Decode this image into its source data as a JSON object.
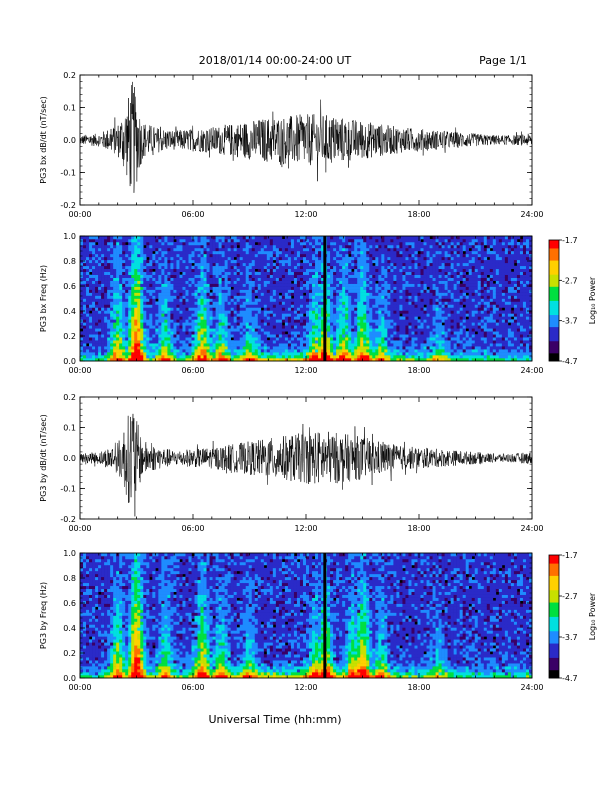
{
  "header": {
    "title": "2018/01/14  00:00-24:00 UT",
    "page": "Page 1/1"
  },
  "x_axis": {
    "title": "Universal Time (hh:mm)",
    "tick_labels": [
      "00:00",
      "06:00",
      "12:00",
      "18:00",
      "24:00"
    ]
  },
  "colorbar": {
    "label": "Log₁₀ Power",
    "tick_labels": [
      "-1.7",
      "-2.7",
      "-3.7",
      "-4.7"
    ],
    "range": [
      -4.7,
      -1.7
    ],
    "colors": [
      "#000000",
      "#3a0066",
      "#2a2ac8",
      "#1e8cff",
      "#00e0e0",
      "#00e040",
      "#c8e000",
      "#ffd000",
      "#ff7000",
      "#ff0000"
    ]
  },
  "chart_data": [
    {
      "type": "line",
      "ylabel": "PG3 bx dB/dt (nT/sec)",
      "xlim": [
        0,
        24
      ],
      "ylim": [
        -0.2,
        0.2
      ],
      "y_tick_labels": [
        "-0.2",
        "-0.1",
        "0.0",
        "0.1",
        "0.2"
      ],
      "line_color": "#000000",
      "series": [
        {
          "x": [
            0,
            1,
            2,
            2.5,
            2.8,
            3.0,
            3.3,
            4,
            5,
            6,
            7,
            8,
            9,
            10,
            11,
            12,
            13,
            14,
            15,
            16,
            17,
            18,
            19,
            20,
            21,
            22,
            23,
            24
          ],
          "envelope": [
            0.015,
            0.02,
            0.05,
            0.12,
            0.19,
            0.14,
            0.06,
            0.04,
            0.03,
            0.035,
            0.04,
            0.05,
            0.06,
            0.07,
            0.075,
            0.08,
            0.08,
            0.07,
            0.06,
            0.05,
            0.04,
            0.035,
            0.03,
            0.025,
            0.02,
            0.015,
            0.015,
            0.02
          ]
        }
      ]
    },
    {
      "type": "heatmap",
      "ylabel": "PG3 bx Freq (Hz)",
      "xlim": [
        0,
        24
      ],
      "ylim": [
        0,
        1
      ],
      "y_tick_labels": [
        "0.0",
        "0.2",
        "0.4",
        "0.6",
        "0.8",
        "1.0"
      ],
      "value_label": "Log₁₀ Power",
      "color_range": [
        -4.7,
        -1.7
      ],
      "active_x": [
        2.0,
        3.0,
        4.5,
        6.5,
        7.5,
        9.0,
        12.5,
        13.0,
        14.0,
        15.0,
        16.0,
        19.0
      ],
      "active_strength": [
        0.6,
        1.0,
        0.5,
        0.65,
        0.5,
        0.4,
        0.55,
        0.7,
        0.6,
        0.65,
        0.4,
        0.3
      ],
      "gap_at_x": 13.0
    },
    {
      "type": "line",
      "ylabel": "PG3 by dB/dt (nT/sec)",
      "xlim": [
        0,
        24
      ],
      "ylim": [
        -0.2,
        0.2
      ],
      "y_tick_labels": [
        "-0.2",
        "-0.1",
        "0.0",
        "0.1",
        "0.2"
      ],
      "line_color": "#000000",
      "series": [
        {
          "x": [
            0,
            1,
            2,
            2.5,
            2.8,
            3.0,
            3.3,
            4,
            5,
            6,
            7,
            8,
            9,
            10,
            11,
            12,
            13,
            14,
            15,
            16,
            17,
            18,
            19,
            20,
            21,
            22,
            23,
            24
          ],
          "envelope": [
            0.015,
            0.02,
            0.05,
            0.13,
            0.2,
            0.13,
            0.06,
            0.04,
            0.025,
            0.03,
            0.035,
            0.045,
            0.055,
            0.065,
            0.075,
            0.085,
            0.09,
            0.08,
            0.07,
            0.055,
            0.04,
            0.035,
            0.03,
            0.025,
            0.02,
            0.015,
            0.015,
            0.02
          ]
        }
      ]
    },
    {
      "type": "heatmap",
      "ylabel": "PG3 by Freq (Hz)",
      "xlim": [
        0,
        24
      ],
      "ylim": [
        0,
        1
      ],
      "y_tick_labels": [
        "0.0",
        "0.2",
        "0.4",
        "0.6",
        "0.8",
        "1.0"
      ],
      "value_label": "Log₁₀ Power",
      "color_range": [
        -4.7,
        -1.7
      ],
      "active_x": [
        2.0,
        3.0,
        4.5,
        6.5,
        7.5,
        9.0,
        12.5,
        13.0,
        14.5,
        15.0,
        16.0,
        19.0
      ],
      "active_strength": [
        0.6,
        1.0,
        0.5,
        0.7,
        0.5,
        0.4,
        0.5,
        0.7,
        0.55,
        0.75,
        0.45,
        0.3
      ],
      "gap_at_x": 13.0
    }
  ]
}
